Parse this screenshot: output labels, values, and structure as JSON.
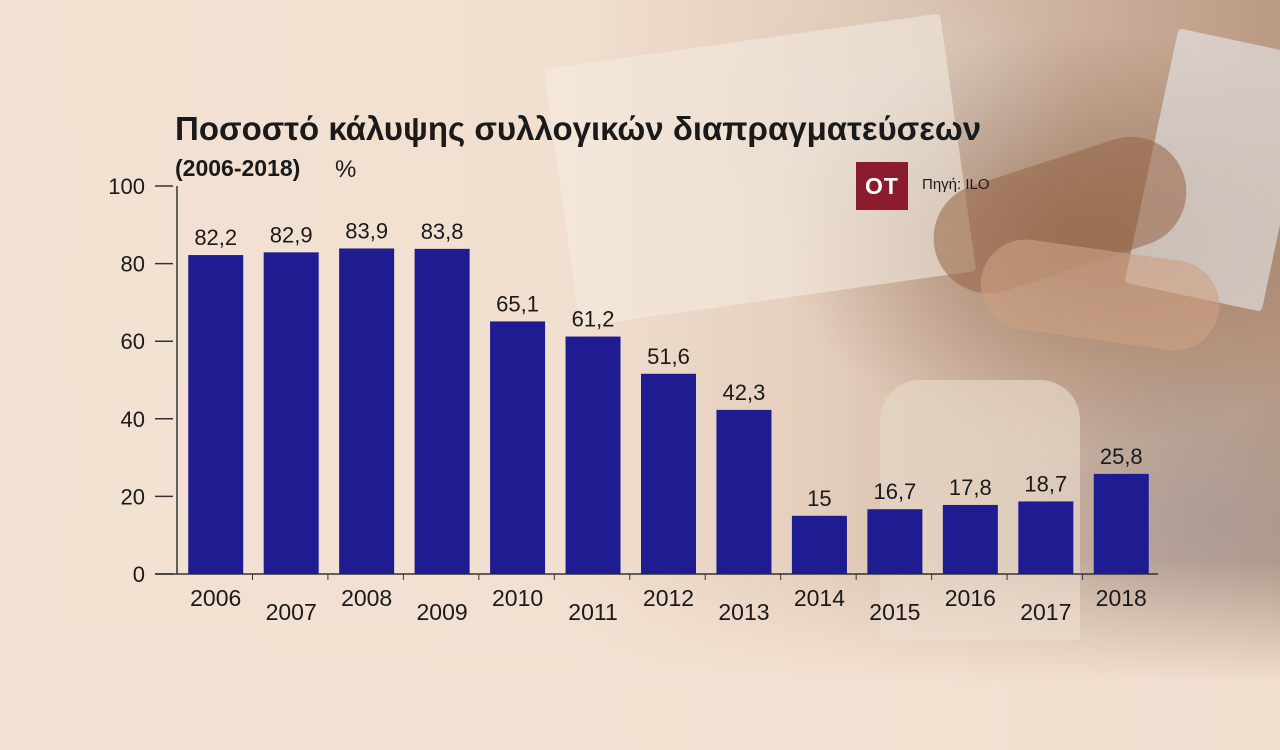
{
  "header": {
    "title": "Ποσοστό κάλυψης συλλογικών διαπραγματεύσεων",
    "subtitle": "(2006-2018)",
    "unit": "%"
  },
  "logo": {
    "text": "ΟΤ",
    "color": "#8b1c2c"
  },
  "source": {
    "text": "Πηγή: ILO"
  },
  "chart_data": {
    "type": "bar",
    "title": "Ποσοστό κάλυψης συλλογικών διαπραγματεύσεων",
    "subtitle": "(2006-2018)",
    "xlabel": "",
    "ylabel": "%",
    "ylim": [
      0,
      100
    ],
    "yticks": [
      0,
      20,
      40,
      60,
      80,
      100
    ],
    "grid": false,
    "bar_color": "#1f1c91",
    "categories": [
      "2006",
      "2007",
      "2008",
      "2009",
      "2010",
      "2011",
      "2012",
      "2013",
      "2014",
      "2015",
      "2016",
      "2017",
      "2018"
    ],
    "values": [
      82.2,
      82.9,
      83.9,
      83.8,
      65.1,
      61.2,
      51.6,
      42.3,
      15,
      16.7,
      17.8,
      18.7,
      25.8
    ],
    "value_labels": [
      "82,2",
      "82,9",
      "83,9",
      "83,8",
      "65,1",
      "61,2",
      "51,6",
      "42,3",
      "15",
      "16,7",
      "17,8",
      "18,7",
      "25,8"
    ]
  }
}
